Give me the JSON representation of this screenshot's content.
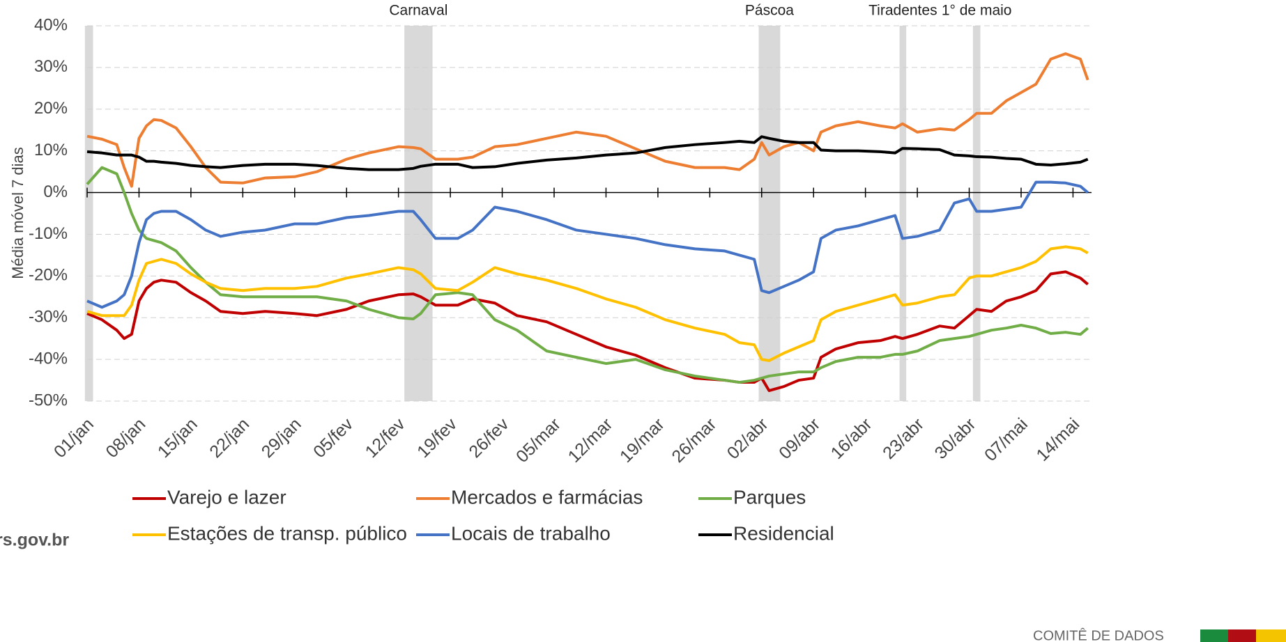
{
  "chart_data": {
    "type": "line",
    "y_label": "Média móvel 7 dias",
    "x": [
      0,
      2,
      4,
      5,
      6,
      7,
      8,
      9,
      10,
      12,
      14,
      16,
      18,
      21,
      24,
      28,
      31,
      35,
      38,
      42,
      44,
      45,
      47,
      50,
      52,
      55,
      58,
      62,
      66,
      70,
      74,
      78,
      82,
      86,
      88,
      90,
      91,
      92,
      94,
      96,
      98,
      99,
      101,
      104,
      107,
      109,
      110,
      112,
      115,
      117,
      119,
      120,
      122,
      124,
      126,
      128,
      130,
      132,
      134,
      135
    ],
    "xlim": [
      0,
      135.5
    ],
    "xticks": [
      {
        "value": 0,
        "label": "01/jan"
      },
      {
        "value": 7,
        "label": "08/jan"
      },
      {
        "value": 14,
        "label": "15/jan"
      },
      {
        "value": 21,
        "label": "22/jan"
      },
      {
        "value": 28,
        "label": "29/jan"
      },
      {
        "value": 35,
        "label": "05/fev"
      },
      {
        "value": 42,
        "label": "12/fev"
      },
      {
        "value": 49,
        "label": "19/fev"
      },
      {
        "value": 56,
        "label": "26/fev"
      },
      {
        "value": 63,
        "label": "05/mar"
      },
      {
        "value": 70,
        "label": "12/mar"
      },
      {
        "value": 77,
        "label": "19/mar"
      },
      {
        "value": 84,
        "label": "26/mar"
      },
      {
        "value": 91,
        "label": "02/abr"
      },
      {
        "value": 98,
        "label": "09/abr"
      },
      {
        "value": 105,
        "label": "16/abr"
      },
      {
        "value": 112,
        "label": "23/abr"
      },
      {
        "value": 119,
        "label": "30/abr"
      },
      {
        "value": 126,
        "label": "07/mai"
      },
      {
        "value": 133,
        "label": "14/mai"
      }
    ],
    "ylim": [
      -50,
      40
    ],
    "yticks": [
      {
        "value": -50,
        "label": "-50%"
      },
      {
        "value": -40,
        "label": "-40%"
      },
      {
        "value": -30,
        "label": "-30%"
      },
      {
        "value": -20,
        "label": "-20%"
      },
      {
        "value": -10,
        "label": "-10%"
      },
      {
        "value": 0,
        "label": "0%"
      },
      {
        "value": 10,
        "label": "10%"
      },
      {
        "value": 20,
        "label": "20%"
      },
      {
        "value": 30,
        "label": "30%"
      },
      {
        "value": 40,
        "label": "40%"
      }
    ],
    "grid": true,
    "shaded": [
      {
        "start": -0.3,
        "end": 0.8
      },
      {
        "label": "Carnaval",
        "start": 42.8,
        "end": 46.6
      },
      {
        "label": "Páscoa",
        "start": 90.6,
        "end": 93.5
      },
      {
        "label": "Tiradentes",
        "start": 109.6,
        "end": 110.5
      },
      {
        "label": "1° de maio",
        "start": 119.5,
        "end": 120.5
      }
    ],
    "series": [
      {
        "name": "Varejo e lazer",
        "color": "#c00000",
        "values": [
          -29,
          -30.5,
          -33,
          -35,
          -34,
          -26,
          -23,
          -21.5,
          -21,
          -21.5,
          -24,
          -26,
          -28.5,
          -29,
          -28.5,
          -29,
          -29.5,
          -28,
          -26,
          -24.5,
          -24.3,
          -25,
          -27,
          -27,
          -25.5,
          -26.5,
          -29.5,
          -31,
          -34,
          -37,
          -39,
          -42,
          -44.5,
          -45,
          -45.5,
          -45.5,
          -44.5,
          -47.5,
          -46.5,
          -45,
          -44.5,
          -39.5,
          -37.5,
          -36,
          -35.5,
          -34.5,
          -35,
          -34,
          -32,
          -32.5,
          -29.5,
          -28,
          -28.5,
          -26,
          -25,
          -23.5,
          -19.5,
          -19,
          -20.5,
          -22
        ]
      },
      {
        "name": "Mercados e farmácias",
        "color": "#ed7d31",
        "values": [
          13.5,
          12.8,
          11.5,
          6,
          1.5,
          13,
          16,
          17.5,
          17.3,
          15.5,
          11,
          6,
          2.5,
          2.3,
          3.5,
          3.8,
          5,
          8,
          9.5,
          11,
          10.8,
          10.5,
          8,
          8,
          8.5,
          11,
          11.5,
          13,
          14.5,
          13.5,
          10.5,
          7.5,
          6,
          6,
          5.5,
          8,
          12,
          9,
          11,
          12,
          10,
          14.5,
          16,
          17,
          16,
          15.5,
          16.5,
          14.5,
          15.3,
          15,
          17.5,
          19,
          19,
          22,
          24,
          26,
          32,
          33.3,
          32,
          27
        ]
      },
      {
        "name": "Parques",
        "color": "#70ad47",
        "values": [
          2,
          6,
          4.5,
          0,
          -5,
          -9,
          -11,
          -11.5,
          -12,
          -14,
          -18,
          -21.5,
          -24.5,
          -25,
          -25,
          -25,
          -25,
          -26,
          -28,
          -30,
          -30.3,
          -29,
          -24.5,
          -24,
          -24.5,
          -30.5,
          -33,
          -38,
          -39.5,
          -41,
          -40,
          -42.5,
          -44,
          -45,
          -45.5,
          -45,
          -44.5,
          -44,
          -43.5,
          -43,
          -43,
          -42,
          -40.5,
          -39.5,
          -39.5,
          -38.8,
          -38.8,
          -38,
          -35.5,
          -35,
          -34.5,
          -34,
          -33,
          -32.5,
          -31.8,
          -32.5,
          -33.8,
          -33.5,
          -34,
          -32.5
        ]
      },
      {
        "name": "Estações de transp. público",
        "color": "#ffc000",
        "values": [
          -28.5,
          -29.5,
          -29.5,
          -29.5,
          -27,
          -21,
          -17,
          -16.5,
          -16,
          -17,
          -19.5,
          -21.5,
          -23,
          -23.5,
          -23,
          -23,
          -22.5,
          -20.5,
          -19.5,
          -18,
          -18.5,
          -19.5,
          -23,
          -23.5,
          -21.5,
          -18,
          -19.5,
          -21,
          -23,
          -25.5,
          -27.5,
          -30.5,
          -32.5,
          -34,
          -36,
          -36.5,
          -40,
          -40.3,
          -38.5,
          -37,
          -35.5,
          -30.5,
          -28.5,
          -27,
          -25.5,
          -24.5,
          -27,
          -26.5,
          -25,
          -24.5,
          -20.5,
          -20,
          -20,
          -19,
          -18,
          -16.5,
          -13.5,
          -13,
          -13.5,
          -14.5
        ]
      },
      {
        "name": "Locais de trabalho",
        "color": "#4472c4",
        "values": [
          -26,
          -27.5,
          -26,
          -24.5,
          -20,
          -12,
          -6.5,
          -5,
          -4.5,
          -4.5,
          -6.5,
          -9,
          -10.5,
          -9.5,
          -9,
          -7.5,
          -7.5,
          -6,
          -5.5,
          -4.5,
          -4.5,
          -6.5,
          -11,
          -11,
          -9,
          -3.5,
          -4.5,
          -6.5,
          -9,
          -10,
          -11,
          -12.5,
          -13.5,
          -14,
          -15,
          -16,
          -23.5,
          -24,
          -22.5,
          -21,
          -19,
          -11,
          -9,
          -8,
          -6.5,
          -5.5,
          -11,
          -10.5,
          -9,
          -2.5,
          -1.5,
          -4.5,
          -4.5,
          -4,
          -3.5,
          2.5,
          2.5,
          2.3,
          1.5,
          0
        ]
      },
      {
        "name": "Residencial",
        "color": "#000000",
        "values": [
          9.8,
          9.5,
          9,
          9,
          9,
          8.5,
          7.5,
          7.5,
          7.3,
          7,
          6.5,
          6.2,
          6,
          6.5,
          6.8,
          6.8,
          6.5,
          5.8,
          5.5,
          5.5,
          5.8,
          6.3,
          6.8,
          6.8,
          6,
          6.2,
          7,
          7.8,
          8.3,
          9,
          9.5,
          10.8,
          11.5,
          12,
          12.3,
          12,
          13.4,
          13,
          12.3,
          12,
          12,
          10.2,
          10,
          10,
          9.8,
          9.5,
          10.6,
          10.5,
          10.3,
          9,
          8.8,
          8.6,
          8.5,
          8.2,
          8,
          6.8,
          6.6,
          6.9,
          7.3,
          8
        ]
      }
    ]
  },
  "footer": {
    "site": "rs.gov.br",
    "committee": "COMITÊ DE DADOS"
  }
}
